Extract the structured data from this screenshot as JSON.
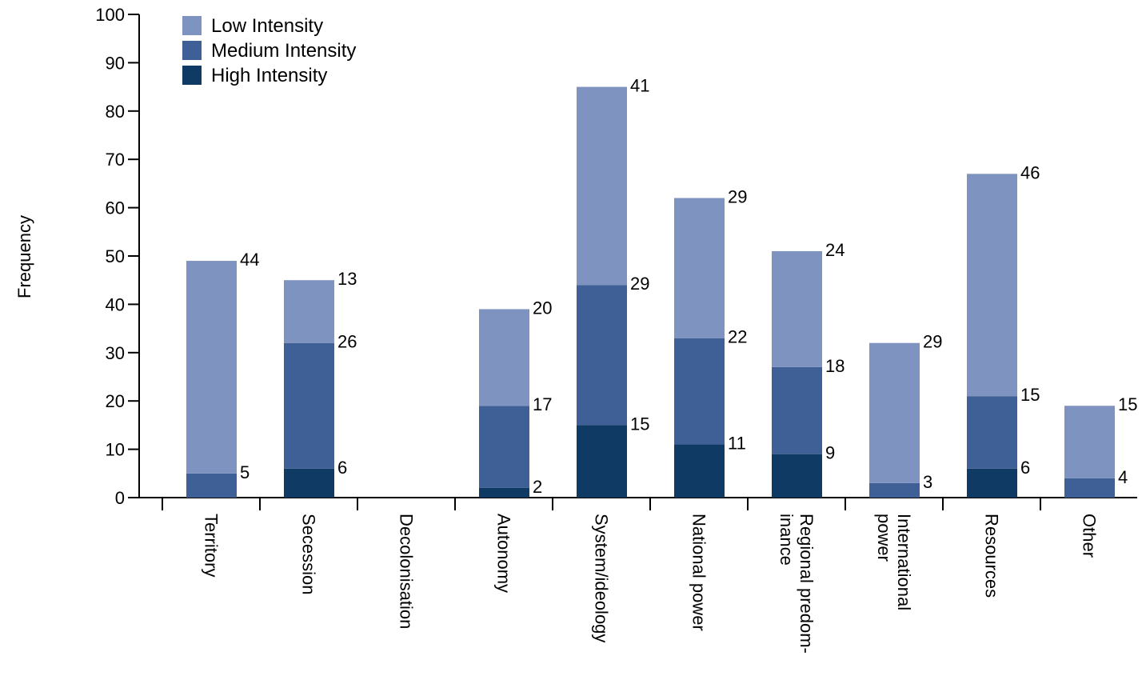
{
  "chart_data": {
    "type": "bar",
    "stacked": true,
    "ylabel": "Frequency",
    "xlabel": "",
    "ylim": [
      0,
      100
    ],
    "yticks": [
      0,
      10,
      20,
      30,
      40,
      50,
      60,
      70,
      80,
      90,
      100
    ],
    "grid": false,
    "legend_position": "top-left",
    "categories": [
      "Territory",
      "Secession",
      "Decolonisation",
      "Autonomy",
      "System/ideology",
      "National power",
      "Regional predom-|inance",
      "International|power",
      "Resources",
      "Other"
    ],
    "series": [
      {
        "name": "High Intensity",
        "color": "#0e3a63",
        "values": [
          0,
          6,
          0,
          2,
          15,
          11,
          9,
          0,
          6,
          0
        ]
      },
      {
        "name": "Medium Intensity",
        "color": "#3f6096",
        "values": [
          5,
          26,
          0,
          17,
          29,
          22,
          18,
          3,
          15,
          4
        ]
      },
      {
        "name": "Low Intensity",
        "color": "#7e93c0",
        "values": [
          44,
          13,
          0,
          20,
          41,
          29,
          24,
          29,
          46,
          15
        ]
      }
    ],
    "legend_order": [
      "Low Intensity",
      "Medium Intensity",
      "High Intensity"
    ]
  }
}
